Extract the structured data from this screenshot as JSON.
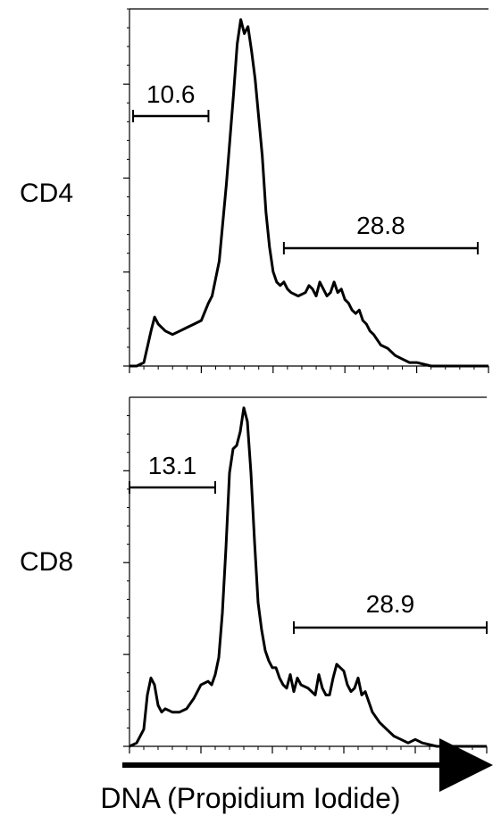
{
  "figure": {
    "xlabel": "DNA (Propidium Iodide)"
  },
  "chart_data": [
    {
      "type": "area",
      "label": "CD4",
      "title": "",
      "xlabel": "",
      "ylabel": "",
      "xlim": [
        0,
        1
      ],
      "ylim": [
        0,
        1
      ],
      "gates": [
        {
          "label": "10.6",
          "x_range": [
            0.01,
            0.22
          ]
        },
        {
          "label": "28.8",
          "x_range": [
            0.43,
            0.97
          ]
        }
      ],
      "x": [
        0,
        0.02,
        0.04,
        0.06,
        0.07,
        0.08,
        0.09,
        0.1,
        0.12,
        0.14,
        0.16,
        0.18,
        0.2,
        0.22,
        0.23,
        0.25,
        0.27,
        0.29,
        0.3,
        0.31,
        0.32,
        0.33,
        0.34,
        0.35,
        0.36,
        0.37,
        0.38,
        0.39,
        0.4,
        0.41,
        0.42,
        0.43,
        0.44,
        0.45,
        0.47,
        0.49,
        0.5,
        0.51,
        0.52,
        0.53,
        0.54,
        0.55,
        0.56,
        0.57,
        0.58,
        0.59,
        0.6,
        0.61,
        0.62,
        0.63,
        0.64,
        0.65,
        0.66,
        0.67,
        0.68,
        0.7,
        0.72,
        0.74,
        0.76,
        0.78,
        0.8,
        0.82,
        0.84,
        0.86,
        0.88,
        0.9,
        0.95,
        1.0
      ],
      "values": [
        0,
        0,
        0.01,
        0.1,
        0.14,
        0.12,
        0.11,
        0.1,
        0.09,
        0.1,
        0.11,
        0.12,
        0.13,
        0.18,
        0.2,
        0.3,
        0.52,
        0.78,
        0.92,
        0.99,
        0.95,
        0.97,
        0.9,
        0.82,
        0.71,
        0.6,
        0.44,
        0.34,
        0.27,
        0.24,
        0.23,
        0.24,
        0.22,
        0.21,
        0.2,
        0.21,
        0.23,
        0.22,
        0.2,
        0.24,
        0.22,
        0.2,
        0.21,
        0.24,
        0.21,
        0.22,
        0.19,
        0.18,
        0.16,
        0.15,
        0.16,
        0.13,
        0.12,
        0.1,
        0.09,
        0.06,
        0.05,
        0.03,
        0.02,
        0.01,
        0.01,
        0.005,
        0,
        0,
        0,
        0,
        0,
        0
      ]
    },
    {
      "type": "area",
      "label": "CD8",
      "title": "",
      "xlabel": "",
      "ylabel": "",
      "xlim": [
        0,
        1
      ],
      "ylim": [
        0,
        1
      ],
      "gates": [
        {
          "label": "13.1",
          "x_range": [
            0.0,
            0.24
          ]
        },
        {
          "label": "28.9",
          "x_range": [
            0.46,
            1.0
          ]
        }
      ],
      "x": [
        0,
        0.02,
        0.04,
        0.05,
        0.06,
        0.07,
        0.08,
        0.09,
        0.1,
        0.12,
        0.14,
        0.16,
        0.18,
        0.2,
        0.22,
        0.23,
        0.24,
        0.25,
        0.26,
        0.27,
        0.28,
        0.29,
        0.3,
        0.31,
        0.32,
        0.33,
        0.34,
        0.35,
        0.36,
        0.37,
        0.38,
        0.39,
        0.4,
        0.41,
        0.42,
        0.43,
        0.44,
        0.45,
        0.46,
        0.47,
        0.48,
        0.5,
        0.52,
        0.53,
        0.54,
        0.55,
        0.56,
        0.57,
        0.58,
        0.6,
        0.61,
        0.62,
        0.63,
        0.64,
        0.65,
        0.66,
        0.67,
        0.68,
        0.7,
        0.72,
        0.74,
        0.76,
        0.78,
        0.8,
        0.82,
        0.84,
        0.86,
        0.88,
        0.9,
        0.95,
        1.0
      ],
      "values": [
        0,
        0.01,
        0.05,
        0.15,
        0.2,
        0.18,
        0.12,
        0.1,
        0.11,
        0.1,
        0.1,
        0.11,
        0.14,
        0.18,
        0.19,
        0.18,
        0.21,
        0.26,
        0.39,
        0.58,
        0.8,
        0.87,
        0.88,
        0.92,
        0.99,
        0.95,
        0.8,
        0.6,
        0.42,
        0.34,
        0.28,
        0.25,
        0.23,
        0.23,
        0.2,
        0.18,
        0.17,
        0.21,
        0.16,
        0.2,
        0.18,
        0.17,
        0.15,
        0.21,
        0.17,
        0.15,
        0.15,
        0.2,
        0.24,
        0.22,
        0.18,
        0.16,
        0.17,
        0.2,
        0.15,
        0.16,
        0.13,
        0.1,
        0.07,
        0.05,
        0.03,
        0.02,
        0.01,
        0.02,
        0.01,
        0.005,
        0,
        0,
        0,
        0,
        0
      ]
    }
  ]
}
